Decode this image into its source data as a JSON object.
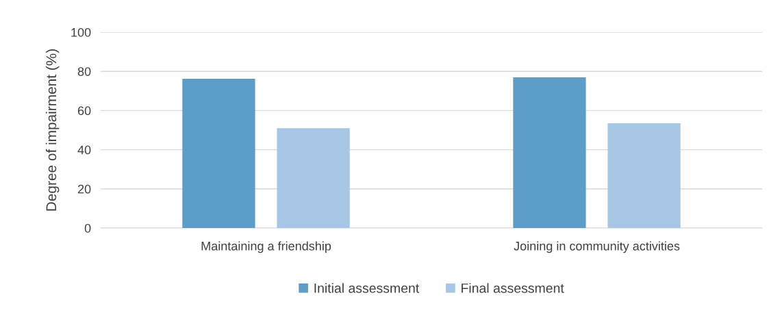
{
  "chart_data": {
    "type": "bar",
    "ylabel": "Degree of impairment (%)",
    "categories": [
      "Maintaining a friendship",
      "Joining in community activities"
    ],
    "series": [
      {
        "name": "Initial assessment",
        "color": "#5f9dc9",
        "values": [
          76.2,
          76.9
        ]
      },
      {
        "name": "Final assessment",
        "color": "#a7c5e4",
        "values": [
          51,
          53.5
        ]
      }
    ],
    "ylim": [
      0,
      100
    ],
    "yticks": [
      0,
      20,
      40,
      60,
      80,
      100
    ],
    "grid": "y",
    "legend": "bottom"
  }
}
